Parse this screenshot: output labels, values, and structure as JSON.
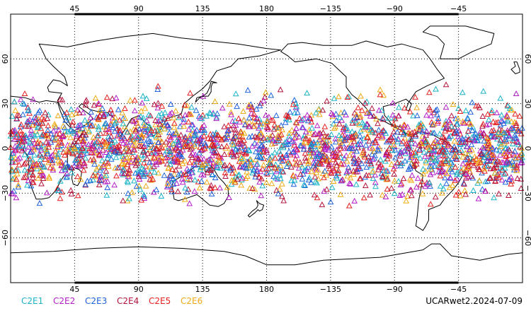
{
  "map": {
    "projection": "cylindrical-equidistant",
    "lon_range": [
      0,
      360
    ],
    "lat_range": [
      -90,
      90
    ],
    "center_lon": 180,
    "grid": "dotted",
    "lon_ticks": [
      {
        "lon": 45,
        "label": "45"
      },
      {
        "lon": 90,
        "label": "90"
      },
      {
        "lon": 135,
        "label": "135"
      },
      {
        "lon": 180,
        "label": "180"
      },
      {
        "lon": 225,
        "label": "−135"
      },
      {
        "lon": 270,
        "label": "−90"
      },
      {
        "lon": 315,
        "label": "−45"
      }
    ],
    "lat_ticks": [
      {
        "lat": 60,
        "label": "60"
      },
      {
        "lat": 30,
        "label": "30"
      },
      {
        "lat": 0,
        "label": "0"
      },
      {
        "lat": -30,
        "label": "−30"
      },
      {
        "lat": -60,
        "label": "−60"
      }
    ],
    "marker_shape": "open-triangle",
    "observation_band_lat": [
      -45,
      45
    ],
    "coastline_color": "#000000"
  },
  "legend": {
    "items": [
      {
        "label": "C2E1",
        "color": "#19b4c8"
      },
      {
        "label": "C2E2",
        "color": "#b41ec8"
      },
      {
        "label": "C2E3",
        "color": "#1e64dc"
      },
      {
        "label": "C2E4",
        "color": "#b4143c"
      },
      {
        "label": "C2E5",
        "color": "#e61e1e"
      },
      {
        "label": "C2E6",
        "color": "#f0aa14"
      }
    ]
  },
  "stamp": "UCARwet2.2024-07-09"
}
